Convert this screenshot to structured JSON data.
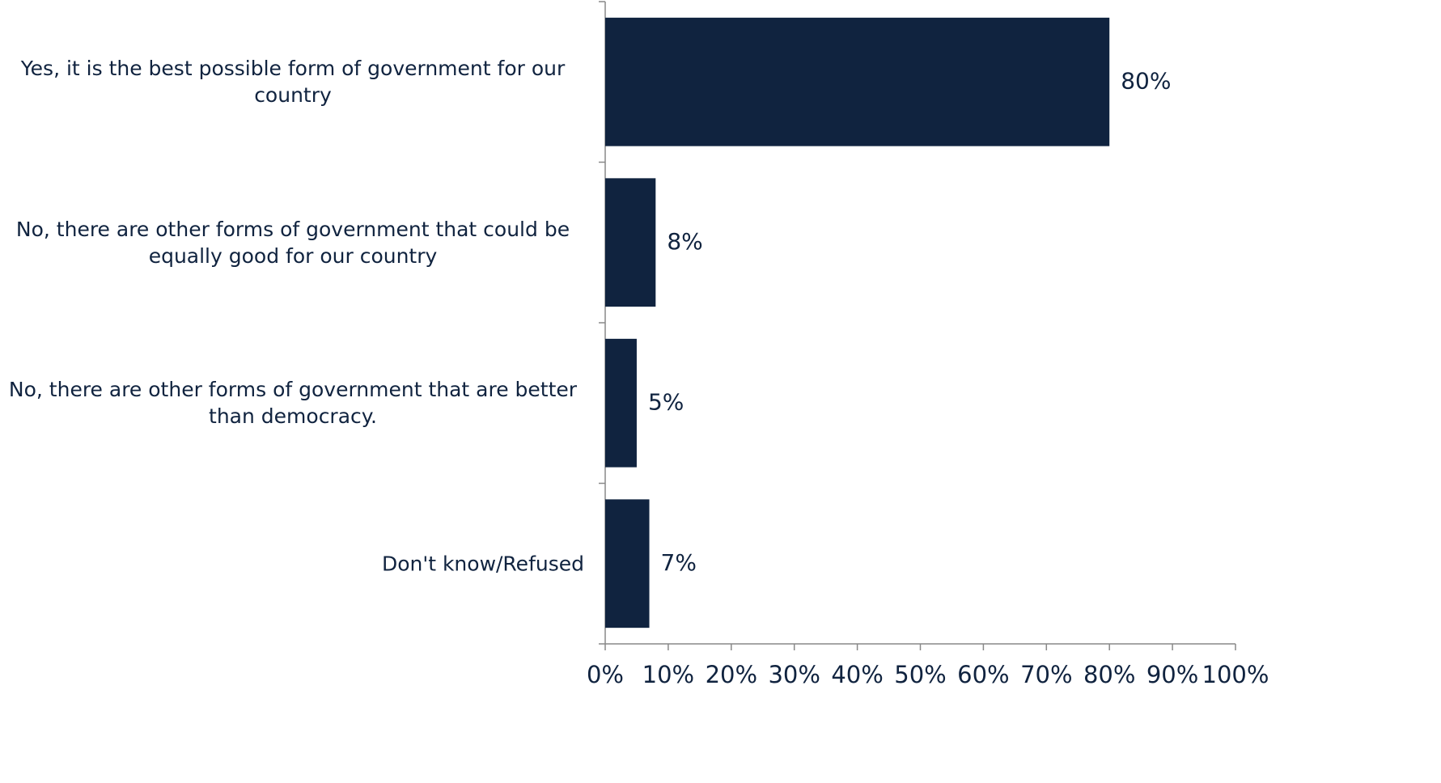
{
  "chart_data": {
    "type": "hbar",
    "categories": [
      "Yes, it is the best possible form of government for our country",
      "No, there are other forms of government that could be equally good for our country",
      "No, there are other forms of government that are better than democracy.",
      "Don't know/Refused"
    ],
    "values": [
      80,
      8,
      5,
      7
    ],
    "value_labels": [
      "80%",
      "8%",
      "5%",
      "7%"
    ],
    "color": "#10233f",
    "xlim": [
      0,
      100
    ],
    "xticks": [
      {
        "value": 0,
        "label": "0%"
      },
      {
        "value": 10,
        "label": "10%"
      },
      {
        "value": 20,
        "label": "20%"
      },
      {
        "value": 30,
        "label": "30%"
      },
      {
        "value": 40,
        "label": "40%"
      },
      {
        "value": 50,
        "label": "50%"
      },
      {
        "value": 60,
        "label": "60%"
      },
      {
        "value": 70,
        "label": "70%"
      },
      {
        "value": 80,
        "label": "80%"
      },
      {
        "value": 90,
        "label": "90%"
      },
      {
        "value": 100,
        "label": "100%"
      }
    ],
    "grid": false
  }
}
